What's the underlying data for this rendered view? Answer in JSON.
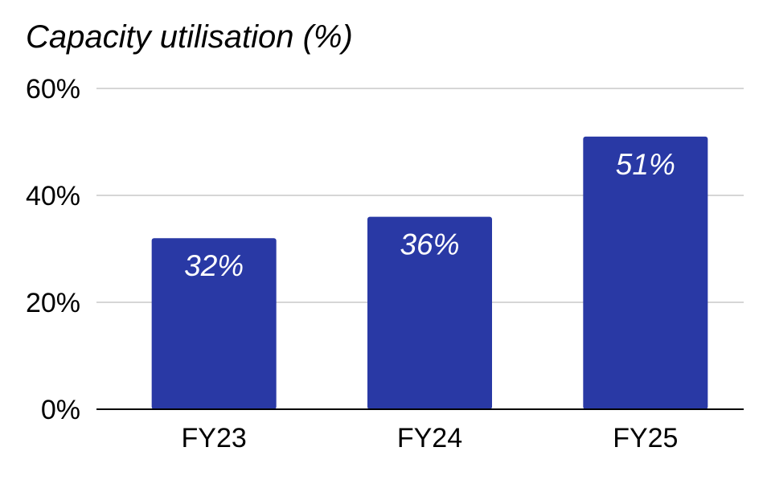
{
  "chart_data": {
    "type": "bar",
    "title": "Capacity utilisation (%)",
    "xlabel": "",
    "ylabel": "",
    "categories": [
      "FY23",
      "FY24",
      "FY25"
    ],
    "values": [
      32,
      36,
      51
    ],
    "data_labels": [
      "32%",
      "36%",
      "51%"
    ],
    "ylim": [
      0,
      60
    ],
    "yticks": [
      0,
      20,
      40,
      60
    ],
    "ytick_labels": [
      "0%",
      "20%",
      "40%",
      "60%"
    ],
    "grid": true,
    "legend": "none",
    "colors": {
      "bar": "#2939A5",
      "grid": "#C8C8C8",
      "axis": "#000000",
      "label": "#FFFFFF",
      "text": "#000000"
    }
  }
}
